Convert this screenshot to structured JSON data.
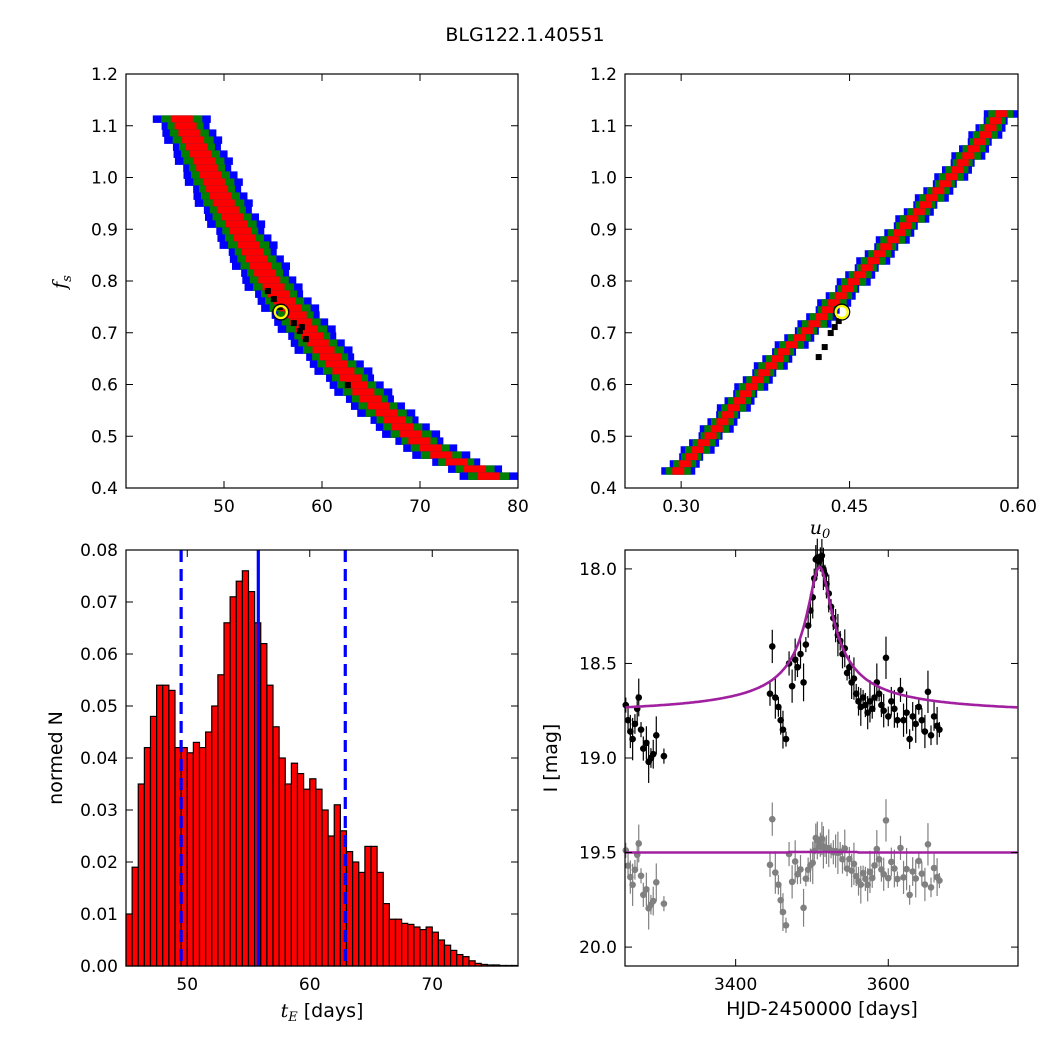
{
  "title": "BLG122.1.40551",
  "chart_data": [
    {
      "id": "fs_vs_tE",
      "type": "heatmap",
      "xlim": [
        40,
        80
      ],
      "ylim": [
        0.4,
        1.2
      ],
      "xticks": [
        "50",
        "60",
        "70",
        "80"
      ],
      "yticks": [
        "0.4",
        "0.5",
        "0.6",
        "0.7",
        "0.8",
        "0.9",
        "1.0",
        "1.1",
        "1.2"
      ],
      "xlabel": "",
      "ylabel": "f",
      "ylabel_sub": "s",
      "confidence_colors": {
        "1sigma": "#ff0000",
        "2sigma": "#008000",
        "3sigma": "#0000ff",
        "best": "#000000"
      },
      "ridge": [
        [
          45.5,
          1.12
        ],
        [
          47.5,
          1.05
        ],
        [
          50,
          0.95
        ],
        [
          52.5,
          0.87
        ],
        [
          55,
          0.79
        ],
        [
          57.5,
          0.73
        ],
        [
          60,
          0.67
        ],
        [
          62.5,
          0.62
        ],
        [
          65,
          0.57
        ],
        [
          67.5,
          0.53
        ],
        [
          70,
          0.49
        ],
        [
          72.5,
          0.46
        ],
        [
          75,
          0.44
        ],
        [
          77,
          0.43
        ]
      ],
      "best_fit": {
        "x": 55.8,
        "y": 0.74
      }
    },
    {
      "id": "fs_vs_u0",
      "type": "heatmap",
      "xlim": [
        0.25,
        0.6
      ],
      "ylim": [
        0.4,
        1.2
      ],
      "xticks": [
        "0.30",
        "0.45",
        "0.60"
      ],
      "yticks": [
        "0.4",
        "0.5",
        "0.6",
        "0.7",
        "0.8",
        "0.9",
        "1.0",
        "1.1",
        "1.2"
      ],
      "xlabel": "u",
      "xlabel_sub": "0",
      "ylabel": "",
      "ridge": [
        [
          0.296,
          0.43
        ],
        [
          0.33,
          0.51
        ],
        [
          0.36,
          0.59
        ],
        [
          0.39,
          0.66
        ],
        [
          0.42,
          0.72
        ],
        [
          0.45,
          0.79
        ],
        [
          0.48,
          0.86
        ],
        [
          0.51,
          0.93
        ],
        [
          0.54,
          1.0
        ],
        [
          0.57,
          1.08
        ],
        [
          0.587,
          1.13
        ]
      ],
      "best_fit": {
        "x": 0.443,
        "y": 0.74
      }
    },
    {
      "id": "tE_histogram",
      "type": "bar",
      "xlim": [
        45,
        77
      ],
      "ylim": [
        0,
        0.08
      ],
      "xticks": [
        "50",
        "60",
        "70"
      ],
      "yticks": [
        "0.00",
        "0.01",
        "0.02",
        "0.03",
        "0.04",
        "0.05",
        "0.06",
        "0.07",
        "0.08"
      ],
      "xlabel": "t",
      "xlabel_sub": "E",
      "xlabel_suffix": " [days]",
      "ylabel": "normed N",
      "bin_start": 45,
      "bin_width": 0.5,
      "values": [
        0.01,
        0.019,
        0.035,
        0.042,
        0.048,
        0.054,
        0.054,
        0.053,
        0.042,
        0.042,
        0.041,
        0.043,
        0.042,
        0.045,
        0.05,
        0.056,
        0.066,
        0.071,
        0.074,
        0.076,
        0.072,
        0.066,
        0.062,
        0.054,
        0.046,
        0.04,
        0.035,
        0.039,
        0.037,
        0.034,
        0.036,
        0.034,
        0.03,
        0.025,
        0.031,
        0.026,
        0.022,
        0.02,
        0.018,
        0.023,
        0.023,
        0.018,
        0.012,
        0.009,
        0.009,
        0.0082,
        0.008,
        0.0075,
        0.007,
        0.0075,
        0.0065,
        0.005,
        0.004,
        0.003,
        0.0022,
        0.0018,
        0.001,
        0.0005,
        0.0003,
        0.0002,
        0.0002,
        0.0001,
        0.0001,
        0.0001
      ],
      "bar_color": "#ff0000",
      "vlines": [
        {
          "x": 49.5,
          "style": "dashed",
          "color": "#0000ff"
        },
        {
          "x": 55.8,
          "style": "solid",
          "color": "#0000ff"
        },
        {
          "x": 62.9,
          "style": "dashed",
          "color": "#0000ff"
        }
      ]
    },
    {
      "id": "light_curve",
      "type": "scatter",
      "xlim": [
        3255,
        3770
      ],
      "ylim": [
        20.1,
        17.9
      ],
      "xticks": [
        "3400",
        "3600"
      ],
      "yticks": [
        "18.0",
        "18.5",
        "19.0",
        "19.5",
        "20.0"
      ],
      "xlabel": "HJD-2450000 [days]",
      "ylabel": "I [mag]",
      "model_color": "#a020a0",
      "model": {
        "baseline": 18.78,
        "peak_mag": 17.99,
        "t0": 3510,
        "width": 28
      },
      "residual_baseline": 19.5,
      "data_color": "#000000",
      "residual_color": "#808080",
      "points": [
        [
          3256,
          18.72
        ],
        [
          3259,
          18.8
        ],
        [
          3262,
          18.86
        ],
        [
          3265,
          18.9
        ],
        [
          3268,
          18.82
        ],
        [
          3271,
          18.74
        ],
        [
          3273,
          18.68
        ],
        [
          3276,
          18.85
        ],
        [
          3279,
          18.95
        ],
        [
          3283,
          18.92
        ],
        [
          3286,
          19.02
        ],
        [
          3289,
          19.0
        ],
        [
          3292,
          18.98
        ],
        [
          3296,
          18.88
        ],
        [
          3306,
          18.99
        ],
        [
          3445,
          18.66
        ],
        [
          3448,
          18.41
        ],
        [
          3452,
          18.68
        ],
        [
          3456,
          18.73
        ],
        [
          3459,
          18.8
        ],
        [
          3462,
          18.85
        ],
        [
          3466,
          18.9
        ],
        [
          3470,
          18.5
        ],
        [
          3474,
          18.62
        ],
        [
          3478,
          18.48
        ],
        [
          3481,
          18.52
        ],
        [
          3485,
          18.45
        ],
        [
          3489,
          18.6
        ],
        [
          3492,
          18.4
        ],
        [
          3495,
          18.3
        ],
        [
          3498,
          18.22
        ],
        [
          3501,
          18.15
        ],
        [
          3503,
          18.05
        ],
        [
          3505,
          17.95
        ],
        [
          3507,
          17.94
        ],
        [
          3509,
          17.96
        ],
        [
          3511,
          17.95
        ],
        [
          3513,
          17.93
        ],
        [
          3515,
          18.0
        ],
        [
          3517,
          18.03
        ],
        [
          3519,
          18.08
        ],
        [
          3522,
          18.13
        ],
        [
          3525,
          18.2
        ],
        [
          3528,
          18.26
        ],
        [
          3531,
          18.3
        ],
        [
          3534,
          18.35
        ],
        [
          3537,
          18.38
        ],
        [
          3540,
          18.45
        ],
        [
          3543,
          18.42
        ],
        [
          3546,
          18.55
        ],
        [
          3549,
          18.52
        ],
        [
          3552,
          18.6
        ],
        [
          3555,
          18.58
        ],
        [
          3558,
          18.66
        ],
        [
          3561,
          18.7
        ],
        [
          3564,
          18.73
        ],
        [
          3567,
          18.68
        ],
        [
          3570,
          18.72
        ],
        [
          3573,
          18.76
        ],
        [
          3576,
          18.7
        ],
        [
          3579,
          18.74
        ],
        [
          3582,
          18.68
        ],
        [
          3585,
          18.6
        ],
        [
          3588,
          18.66
        ],
        [
          3591,
          18.72
        ],
        [
          3594,
          18.75
        ],
        [
          3597,
          18.47
        ],
        [
          3600,
          18.78
        ],
        [
          3604,
          18.7
        ],
        [
          3608,
          18.74
        ],
        [
          3612,
          18.8
        ],
        [
          3616,
          18.64
        ],
        [
          3620,
          18.8
        ],
        [
          3624,
          18.76
        ],
        [
          3628,
          18.9
        ],
        [
          3632,
          18.78
        ],
        [
          3636,
          18.82
        ],
        [
          3640,
          18.73
        ],
        [
          3644,
          18.8
        ],
        [
          3648,
          18.86
        ],
        [
          3652,
          18.65
        ],
        [
          3656,
          18.88
        ],
        [
          3660,
          18.78
        ],
        [
          3664,
          18.83
        ],
        [
          3667,
          18.85
        ]
      ]
    }
  ]
}
